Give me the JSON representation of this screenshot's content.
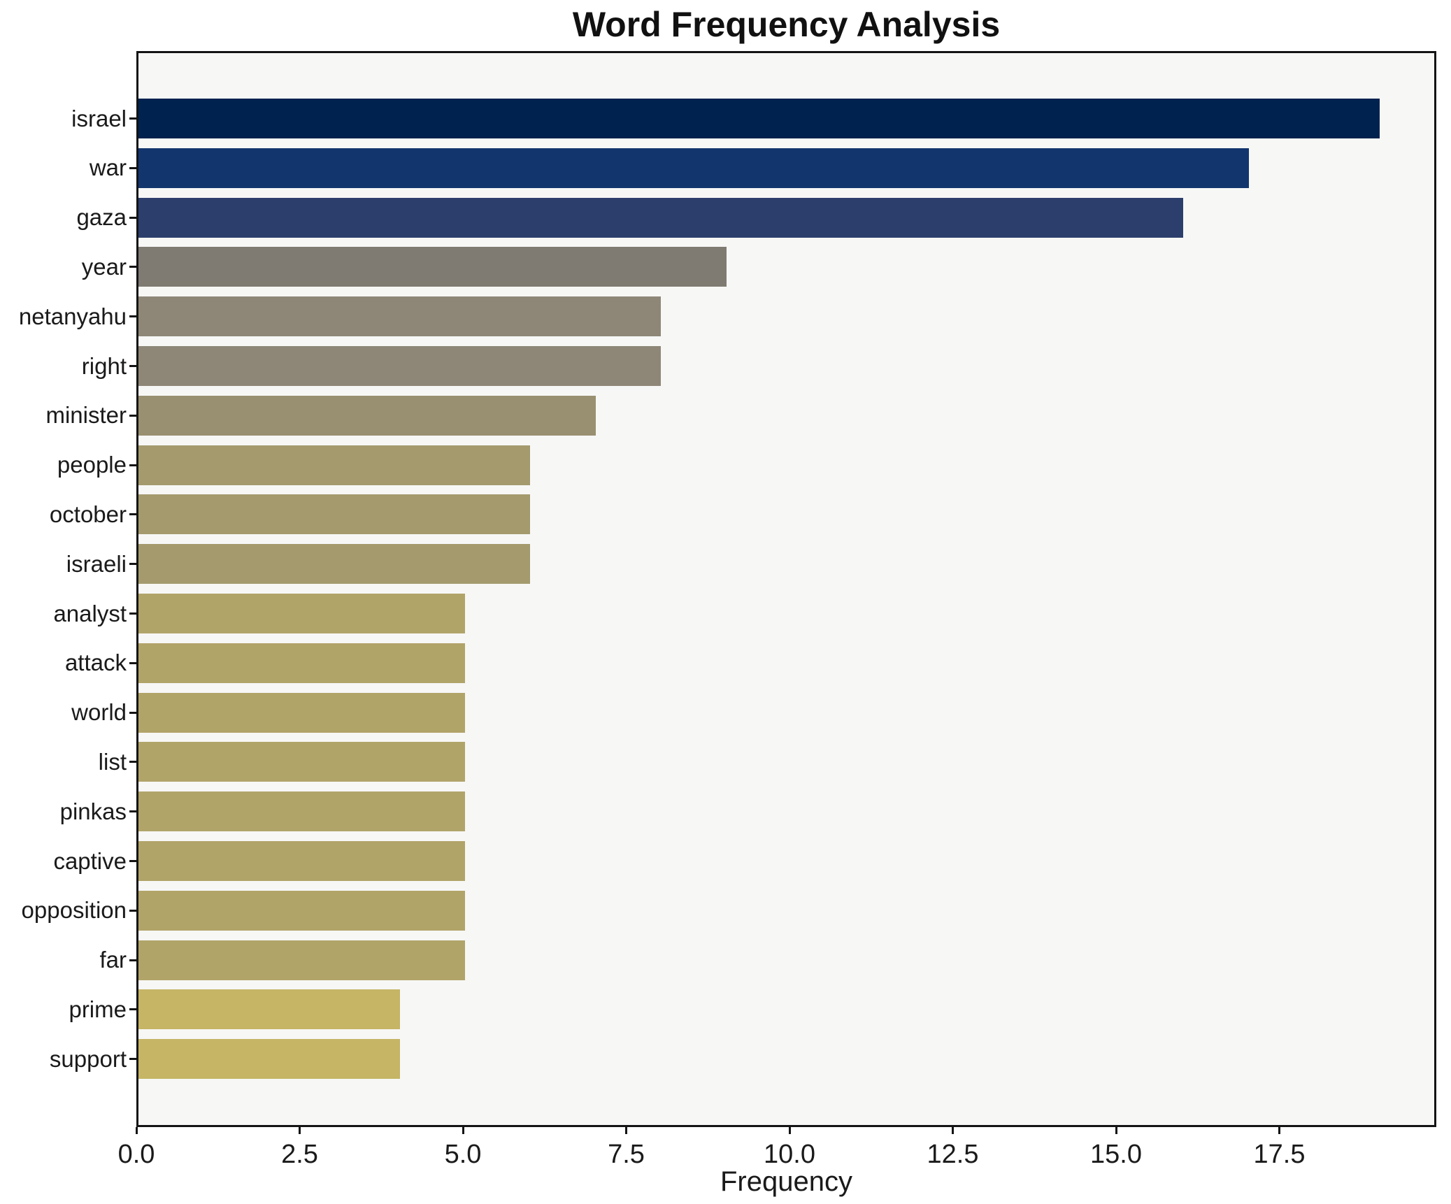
{
  "chart_data": {
    "type": "bar",
    "orientation": "horizontal",
    "title": "Word Frequency Analysis",
    "xlabel": "Frequency",
    "ylabel": "",
    "categories": [
      "israel",
      "war",
      "gaza",
      "year",
      "netanyahu",
      "right",
      "minister",
      "people",
      "october",
      "israeli",
      "analyst",
      "attack",
      "world",
      "list",
      "pinkas",
      "captive",
      "opposition",
      "far",
      "prime",
      "support"
    ],
    "values": [
      19,
      17,
      16,
      9,
      8,
      8,
      7,
      6,
      6,
      6,
      5,
      5,
      5,
      5,
      5,
      5,
      5,
      5,
      4,
      4
    ],
    "bar_colors": [
      "#00224e",
      "#13356e",
      "#2c3f6c",
      "#7f7b73",
      "#8e8777",
      "#8e8777",
      "#999071",
      "#a49a6e",
      "#a49a6e",
      "#a49a6e",
      "#b1a469",
      "#b1a469",
      "#b1a469",
      "#b1a469",
      "#b1a469",
      "#b1a469",
      "#b1a469",
      "#b1a469",
      "#c5b565",
      "#c5b565"
    ],
    "x_ticks": [
      0,
      2.5,
      5,
      7.5,
      10,
      12.5,
      15,
      17.5
    ],
    "x_tick_labels": [
      "0.0",
      "2.5",
      "5.0",
      "7.5",
      "10.0",
      "12.5",
      "15.0",
      "17.5"
    ],
    "xlim": [
      0,
      19.9
    ],
    "grid": false,
    "legend_position": "none",
    "plot_bg": "#f7f7f6",
    "figure_bg": "#ffffff",
    "spine_color": "#141414"
  }
}
